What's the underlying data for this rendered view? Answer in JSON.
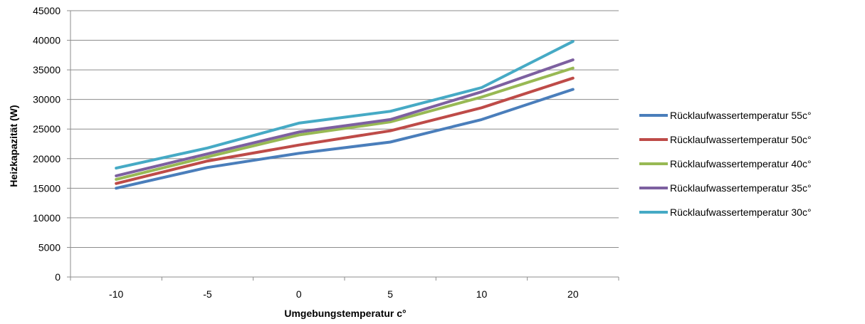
{
  "chart_data": {
    "type": "line",
    "title": "",
    "xlabel": "Umgebungstemperatur c°",
    "ylabel": "Heizkapazität (W)",
    "categories": [
      "-10",
      "-5",
      "0",
      "5",
      "10",
      "20"
    ],
    "ylim": [
      0,
      45000
    ],
    "yticks": [
      "0",
      "5000",
      "10000",
      "15000",
      "20000",
      "25000",
      "30000",
      "35000",
      "40000",
      "45000"
    ],
    "grid": true,
    "legend_position": "right",
    "series": [
      {
        "name": "Rücklaufwassertemperatur 55c°",
        "color": "#4A7EBB",
        "values": [
          15000,
          18500,
          20900,
          22800,
          26600,
          31700
        ]
      },
      {
        "name": "Rücklaufwassertemperatur 50c°",
        "color": "#BE4B48",
        "values": [
          15800,
          19600,
          22300,
          24700,
          28600,
          33600
        ]
      },
      {
        "name": "Rücklaufwassertemperatur 40c°",
        "color": "#98B954",
        "values": [
          16500,
          20300,
          24000,
          26200,
          30400,
          35300
        ]
      },
      {
        "name": "Rücklaufwassertemperatur 35c°",
        "color": "#7D60A0",
        "values": [
          17100,
          20800,
          24500,
          26600,
          31300,
          36700
        ]
      },
      {
        "name": "Rücklaufwassertemperatur 30c°",
        "color": "#46AAC5",
        "values": [
          18400,
          21800,
          26000,
          28000,
          32000,
          39800
        ]
      }
    ]
  }
}
